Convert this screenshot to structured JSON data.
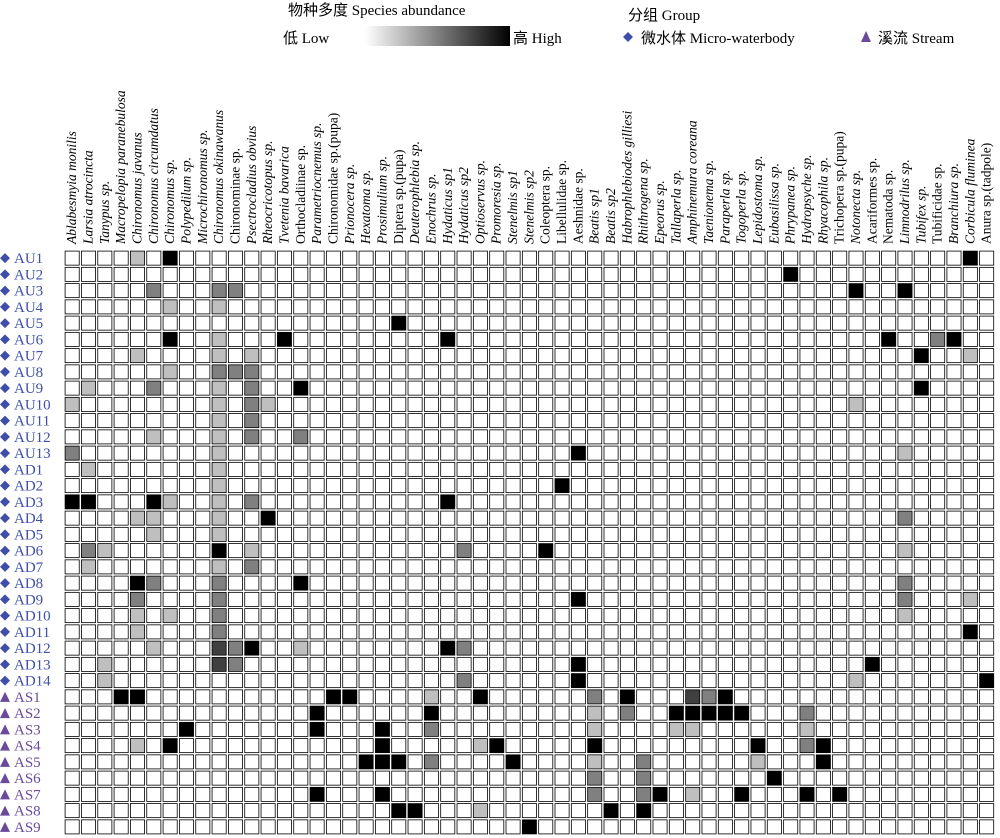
{
  "legend": {
    "abundance_title": "物种多度 Species abundance",
    "low_label": "低 Low",
    "high_label": "高 High",
    "group_title": "分组 Group",
    "groups": [
      {
        "name": "微水体 Micro-waterbody",
        "marker": "diamond",
        "color": "#3f4ea8"
      },
      {
        "name": "溪流 Stream",
        "marker": "triangle",
        "color": "#6a4a9c"
      }
    ]
  },
  "chart_data": {
    "type": "heatmap",
    "color_scale": {
      "low": "#ffffff",
      "high": "#000000"
    },
    "value_range": [
      0,
      4
    ],
    "columns": [
      {
        "label": "Ablabesmyia monilis",
        "italic": true
      },
      {
        "label": "Larsia atrocincta",
        "italic": true
      },
      {
        "label": "Tanypus sp.",
        "italic": true
      },
      {
        "label": "Macropelopia paranebulosa",
        "italic": true
      },
      {
        "label": "Chironomus javanus",
        "italic": true
      },
      {
        "label": "Chironomus circumdatus",
        "italic": true
      },
      {
        "label": "Chironomus sp.",
        "italic": true
      },
      {
        "label": "Polypedilum sp.",
        "italic": true
      },
      {
        "label": "Microchironomus sp.",
        "italic": true
      },
      {
        "label": "Chironomus okinawanus",
        "italic": true
      },
      {
        "label": "Chironominae sp.",
        "italic": false
      },
      {
        "label": "Psectrocladius obvius",
        "italic": true
      },
      {
        "label": "Rheocricotopus sp.",
        "italic": true
      },
      {
        "label": "Tvetenia bavarica",
        "italic": true
      },
      {
        "label": "Orthocladiinae sp.",
        "italic": false
      },
      {
        "label": "Parametriocnemus sp.",
        "italic": true
      },
      {
        "label": "Chironomidae sp.(pupa)",
        "italic": false
      },
      {
        "label": "Prionocera sp.",
        "italic": true
      },
      {
        "label": "Hexatoma sp.",
        "italic": true
      },
      {
        "label": "Prosimulium sp.",
        "italic": true
      },
      {
        "label": "Diptera sp.(pupa)",
        "italic": false
      },
      {
        "label": "Deuterophlebia sp.",
        "italic": true
      },
      {
        "label": "Enochrus sp.",
        "italic": true
      },
      {
        "label": "Hydaticus sp1",
        "italic": true
      },
      {
        "label": "Hydaticus sp2",
        "italic": true
      },
      {
        "label": "Optioservus sp.",
        "italic": true
      },
      {
        "label": "Promoresia sp.",
        "italic": true
      },
      {
        "label": "Stenelmis sp1",
        "italic": true
      },
      {
        "label": "Stenelmis sp2",
        "italic": true
      },
      {
        "label": "Coleoptera sp.",
        "italic": false
      },
      {
        "label": "Libellulidae sp.",
        "italic": false
      },
      {
        "label": "Aeshnidae sp.",
        "italic": false
      },
      {
        "label": "Beatis sp1",
        "italic": true
      },
      {
        "label": "Beatis sp2",
        "italic": true
      },
      {
        "label": "Habrophlebiodes gilliesi",
        "italic": true
      },
      {
        "label": "Rhithrogena sp.",
        "italic": true
      },
      {
        "label": "Epeorus sp.",
        "italic": true
      },
      {
        "label": "Tallaperla sp.",
        "italic": true
      },
      {
        "label": "Amphinemura coreana",
        "italic": true
      },
      {
        "label": "Taenionema sp.",
        "italic": true
      },
      {
        "label": "Paraperla sp.",
        "italic": true
      },
      {
        "label": "Togoperla sp.",
        "italic": true
      },
      {
        "label": "Lepidostoma sp.",
        "italic": true
      },
      {
        "label": "Eubasilissa sp.",
        "italic": true
      },
      {
        "label": "Phrypanea sp.",
        "italic": true
      },
      {
        "label": "Hydropsyche sp.",
        "italic": true
      },
      {
        "label": "Rhyacophila sp.",
        "italic": true
      },
      {
        "label": "Trichopera sp.(pupa)",
        "italic": false
      },
      {
        "label": "Notonecta sp.",
        "italic": true
      },
      {
        "label": "Acariformes sp.",
        "italic": false
      },
      {
        "label": "Nematoda sp.",
        "italic": false
      },
      {
        "label": "Limnodrilus sp.",
        "italic": true
      },
      {
        "label": "Tubifex sp.",
        "italic": true
      },
      {
        "label": "Tubificidae sp.",
        "italic": false
      },
      {
        "label": "Branchiura sp.",
        "italic": true
      },
      {
        "label": "Corbicula fluminea",
        "italic": true
      },
      {
        "label": "Anura sp.(tadpole)",
        "italic": false
      }
    ],
    "rows": [
      {
        "label": "AU1",
        "group": "微水体 Micro-waterbody"
      },
      {
        "label": "AU2",
        "group": "微水体 Micro-waterbody"
      },
      {
        "label": "AU3",
        "group": "微水体 Micro-waterbody"
      },
      {
        "label": "AU4",
        "group": "微水体 Micro-waterbody"
      },
      {
        "label": "AU5",
        "group": "微水体 Micro-waterbody"
      },
      {
        "label": "AU6",
        "group": "微水体 Micro-waterbody"
      },
      {
        "label": "AU7",
        "group": "微水体 Micro-waterbody"
      },
      {
        "label": "AU8",
        "group": "微水体 Micro-waterbody"
      },
      {
        "label": "AU9",
        "group": "微水体 Micro-waterbody"
      },
      {
        "label": "AU10",
        "group": "微水体 Micro-waterbody"
      },
      {
        "label": "AU11",
        "group": "微水体 Micro-waterbody"
      },
      {
        "label": "AU12",
        "group": "微水体 Micro-waterbody"
      },
      {
        "label": "AU13",
        "group": "微水体 Micro-waterbody"
      },
      {
        "label": "AD1",
        "group": "微水体 Micro-waterbody"
      },
      {
        "label": "AD2",
        "group": "微水体 Micro-waterbody"
      },
      {
        "label": "AD3",
        "group": "微水体 Micro-waterbody"
      },
      {
        "label": "AD4",
        "group": "微水体 Micro-waterbody"
      },
      {
        "label": "AD5",
        "group": "微水体 Micro-waterbody"
      },
      {
        "label": "AD6",
        "group": "微水体 Micro-waterbody"
      },
      {
        "label": "AD7",
        "group": "微水体 Micro-waterbody"
      },
      {
        "label": "AD8",
        "group": "微水体 Micro-waterbody"
      },
      {
        "label": "AD9",
        "group": "微水体 Micro-waterbody"
      },
      {
        "label": "AD10",
        "group": "微水体 Micro-waterbody"
      },
      {
        "label": "AD11",
        "group": "微水体 Micro-waterbody"
      },
      {
        "label": "AD12",
        "group": "微水体 Micro-waterbody"
      },
      {
        "label": "AD13",
        "group": "微水体 Micro-waterbody"
      },
      {
        "label": "AD14",
        "group": "微水体 Micro-waterbody"
      },
      {
        "label": "AS1",
        "group": "溪流 Stream"
      },
      {
        "label": "AS2",
        "group": "溪流 Stream"
      },
      {
        "label": "AS3",
        "group": "溪流 Stream"
      },
      {
        "label": "AS4",
        "group": "溪流 Stream"
      },
      {
        "label": "AS5",
        "group": "溪流 Stream"
      },
      {
        "label": "AS6",
        "group": "溪流 Stream"
      },
      {
        "label": "AS7",
        "group": "溪流 Stream"
      },
      {
        "label": "AS8",
        "group": "溪流 Stream"
      },
      {
        "label": "AS9",
        "group": "溪流 Stream"
      }
    ],
    "cells": [
      [
        0,
        6,
        4
      ],
      [
        0,
        55,
        4
      ],
      [
        0,
        4,
        1
      ],
      [
        1,
        44,
        4
      ],
      [
        2,
        5,
        2
      ],
      [
        2,
        9,
        2
      ],
      [
        2,
        10,
        2
      ],
      [
        2,
        48,
        4
      ],
      [
        2,
        51,
        4
      ],
      [
        3,
        6,
        1
      ],
      [
        3,
        9,
        1
      ],
      [
        4,
        20,
        4
      ],
      [
        5,
        6,
        4
      ],
      [
        5,
        13,
        4
      ],
      [
        5,
        23,
        4
      ],
      [
        5,
        50,
        4
      ],
      [
        5,
        54,
        4
      ],
      [
        5,
        53,
        2
      ],
      [
        5,
        9,
        1
      ],
      [
        6,
        52,
        4
      ],
      [
        6,
        55,
        1
      ],
      [
        6,
        4,
        1
      ],
      [
        6,
        9,
        1
      ],
      [
        6,
        11,
        1
      ],
      [
        7,
        9,
        2
      ],
      [
        7,
        10,
        2
      ],
      [
        7,
        11,
        2
      ],
      [
        7,
        6,
        1
      ],
      [
        8,
        14,
        4
      ],
      [
        8,
        52,
        4
      ],
      [
        8,
        5,
        2
      ],
      [
        8,
        11,
        2
      ],
      [
        8,
        1,
        1
      ],
      [
        8,
        9,
        1
      ],
      [
        9,
        0,
        1
      ],
      [
        9,
        9,
        1
      ],
      [
        9,
        11,
        2
      ],
      [
        9,
        12,
        1
      ],
      [
        9,
        48,
        1
      ],
      [
        10,
        9,
        1
      ],
      [
        10,
        11,
        2
      ],
      [
        11,
        11,
        2
      ],
      [
        11,
        14,
        2
      ],
      [
        11,
        9,
        1
      ],
      [
        11,
        5,
        1
      ],
      [
        12,
        0,
        2
      ],
      [
        12,
        31,
        4
      ],
      [
        12,
        9,
        1
      ],
      [
        12,
        51,
        1
      ],
      [
        13,
        1,
        1
      ],
      [
        13,
        9,
        1
      ],
      [
        14,
        30,
        4
      ],
      [
        14,
        9,
        1
      ],
      [
        15,
        0,
        4
      ],
      [
        15,
        1,
        4
      ],
      [
        15,
        5,
        4
      ],
      [
        15,
        23,
        4
      ],
      [
        15,
        6,
        1
      ],
      [
        15,
        11,
        2
      ],
      [
        15,
        9,
        1
      ],
      [
        16,
        12,
        4
      ],
      [
        16,
        4,
        1
      ],
      [
        16,
        5,
        1
      ],
      [
        16,
        9,
        1
      ],
      [
        16,
        51,
        2
      ],
      [
        17,
        5,
        1
      ],
      [
        17,
        9,
        1
      ],
      [
        18,
        9,
        4
      ],
      [
        18,
        29,
        4
      ],
      [
        18,
        1,
        2
      ],
      [
        18,
        2,
        1
      ],
      [
        18,
        24,
        2
      ],
      [
        18,
        11,
        1
      ],
      [
        18,
        51,
        1
      ],
      [
        19,
        1,
        1
      ],
      [
        19,
        9,
        1
      ],
      [
        19,
        11,
        2
      ],
      [
        20,
        4,
        4
      ],
      [
        20,
        14,
        4
      ],
      [
        20,
        5,
        2
      ],
      [
        20,
        9,
        2
      ],
      [
        20,
        51,
        2
      ],
      [
        21,
        4,
        2
      ],
      [
        21,
        31,
        4
      ],
      [
        21,
        9,
        2
      ],
      [
        21,
        51,
        2
      ],
      [
        21,
        55,
        1
      ],
      [
        22,
        4,
        1
      ],
      [
        22,
        6,
        1
      ],
      [
        22,
        9,
        2
      ],
      [
        22,
        51,
        1
      ],
      [
        23,
        55,
        4
      ],
      [
        23,
        9,
        2
      ],
      [
        23,
        4,
        1
      ],
      [
        24,
        11,
        4
      ],
      [
        24,
        23,
        4
      ],
      [
        24,
        9,
        3
      ],
      [
        24,
        10,
        2
      ],
      [
        24,
        5,
        1
      ],
      [
        24,
        14,
        1
      ],
      [
        24,
        24,
        2
      ],
      [
        25,
        31,
        4
      ],
      [
        25,
        49,
        4
      ],
      [
        25,
        9,
        3
      ],
      [
        25,
        10,
        2
      ],
      [
        25,
        2,
        1
      ],
      [
        26,
        31,
        4
      ],
      [
        26,
        56,
        4
      ],
      [
        26,
        2,
        1
      ],
      [
        26,
        24,
        2
      ],
      [
        26,
        48,
        1
      ],
      [
        27,
        3,
        4
      ],
      [
        27,
        4,
        4
      ],
      [
        27,
        16,
        4
      ],
      [
        27,
        17,
        4
      ],
      [
        27,
        25,
        4
      ],
      [
        27,
        34,
        4
      ],
      [
        27,
        22,
        1
      ],
      [
        27,
        32,
        2
      ],
      [
        27,
        38,
        3
      ],
      [
        27,
        39,
        2
      ],
      [
        27,
        40,
        4
      ],
      [
        28,
        15,
        4
      ],
      [
        28,
        22,
        4
      ],
      [
        28,
        37,
        4
      ],
      [
        28,
        38,
        4
      ],
      [
        28,
        39,
        4
      ],
      [
        28,
        40,
        4
      ],
      [
        28,
        41,
        4
      ],
      [
        28,
        32,
        1
      ],
      [
        28,
        34,
        2
      ],
      [
        28,
        45,
        2
      ],
      [
        29,
        7,
        4
      ],
      [
        29,
        15,
        4
      ],
      [
        29,
        19,
        4
      ],
      [
        29,
        22,
        2
      ],
      [
        29,
        32,
        1
      ],
      [
        29,
        37,
        1
      ],
      [
        29,
        38,
        1
      ],
      [
        29,
        45,
        1
      ],
      [
        30,
        6,
        4
      ],
      [
        30,
        19,
        4
      ],
      [
        30,
        26,
        4
      ],
      [
        30,
        32,
        4
      ],
      [
        30,
        42,
        4
      ],
      [
        30,
        46,
        4
      ],
      [
        30,
        4,
        1
      ],
      [
        30,
        25,
        1
      ],
      [
        30,
        45,
        2
      ],
      [
        31,
        18,
        4
      ],
      [
        31,
        19,
        4
      ],
      [
        31,
        20,
        4
      ],
      [
        31,
        27,
        4
      ],
      [
        31,
        46,
        4
      ],
      [
        31,
        22,
        2
      ],
      [
        31,
        32,
        1
      ],
      [
        31,
        35,
        2
      ],
      [
        31,
        42,
        1
      ],
      [
        32,
        43,
        4
      ],
      [
        32,
        32,
        2
      ],
      [
        32,
        35,
        2
      ],
      [
        33,
        15,
        4
      ],
      [
        33,
        19,
        4
      ],
      [
        33,
        36,
        4
      ],
      [
        33,
        41,
        4
      ],
      [
        33,
        45,
        4
      ],
      [
        33,
        47,
        4
      ],
      [
        33,
        32,
        2
      ],
      [
        33,
        35,
        2
      ],
      [
        33,
        38,
        1
      ],
      [
        34,
        20,
        4
      ],
      [
        34,
        21,
        4
      ],
      [
        34,
        33,
        4
      ],
      [
        34,
        35,
        4
      ],
      [
        34,
        25,
        1
      ],
      [
        35,
        28,
        4
      ]
    ]
  }
}
